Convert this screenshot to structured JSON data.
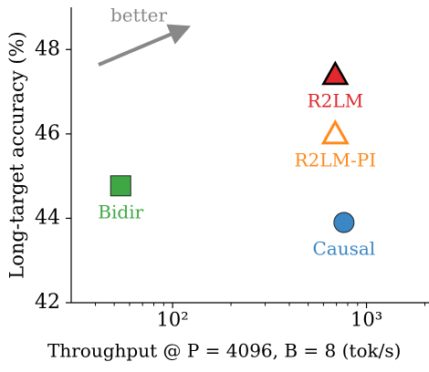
{
  "chart_data": {
    "type": "scatter",
    "x_label": "Throughput @ P = 4096, B = 8 (tok/s)",
    "y_label": "Long-target accuracy (%)",
    "annotation": "better",
    "xscale": "log",
    "xlim": [
      30,
      2100
    ],
    "ylim": [
      42,
      49
    ],
    "xticks": [
      {
        "value": 100,
        "label": "10²"
      },
      {
        "value": 1000,
        "label": "10³"
      }
    ],
    "xminorticks": [
      40,
      50,
      60,
      70,
      80,
      90,
      200,
      300,
      400,
      500,
      600,
      700,
      800,
      900,
      2000
    ],
    "yticks": [
      42,
      44,
      46,
      48
    ],
    "series": [
      {
        "name": "R2LM",
        "color": "#e0282e",
        "marker": "triangle",
        "filled": true,
        "x": [
          690
        ],
        "values": [
          47.4
        ]
      },
      {
        "name": "R2LM-PI",
        "color": "#ff8a1c",
        "marker": "triangle",
        "filled": false,
        "x": [
          690
        ],
        "values": [
          46.0
        ]
      },
      {
        "name": "Bidir",
        "color": "#3fa845",
        "marker": "square",
        "filled": true,
        "x": [
          54
        ],
        "values": [
          44.77
        ]
      },
      {
        "name": "Causal",
        "color": "#3b86c4",
        "marker": "circle",
        "filled": true,
        "x": [
          765
        ],
        "values": [
          43.9
        ]
      }
    ]
  }
}
